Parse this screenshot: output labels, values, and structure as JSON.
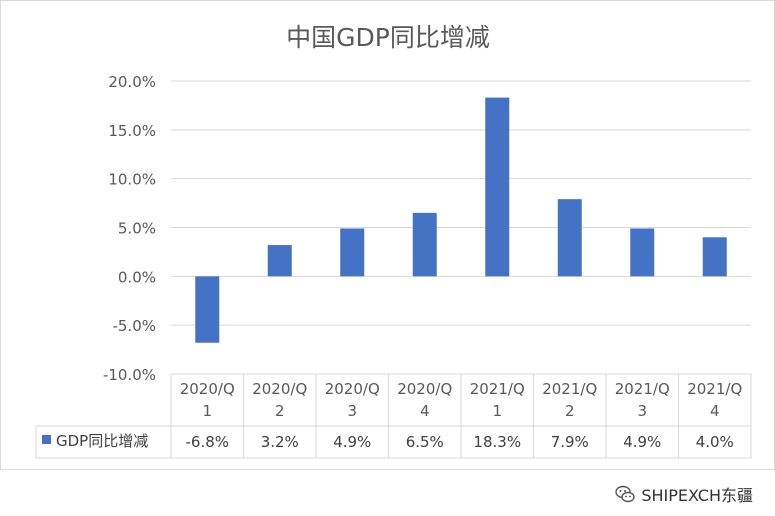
{
  "chart_data": {
    "type": "bar",
    "title": "中国GDP同比增减",
    "categories": [
      [
        "2020/Q",
        "1"
      ],
      [
        "2020/Q",
        "2"
      ],
      [
        "2020/Q",
        "3"
      ],
      [
        "2020/Q",
        "4"
      ],
      [
        "2021/Q",
        "1"
      ],
      [
        "2021/Q",
        "2"
      ],
      [
        "2021/Q",
        "3"
      ],
      [
        "2021/Q",
        "4"
      ]
    ],
    "series": [
      {
        "name": "GDP同比增减",
        "values": [
          -6.8,
          3.2,
          4.9,
          6.5,
          18.3,
          7.9,
          4.9,
          4.0
        ],
        "labels": [
          "-6.8%",
          "3.2%",
          "4.9%",
          "6.5%",
          "18.3%",
          "7.9%",
          "4.9%",
          "4.0%"
        ],
        "color": "#4472c4"
      }
    ],
    "ylim": [
      -10,
      20
    ],
    "yticks": [
      20,
      15,
      10,
      5,
      0,
      -5,
      -10
    ],
    "ytick_labels": [
      "20.0%",
      "15.0%",
      "10.0%",
      "5.0%",
      "0.0%",
      "-5.0%",
      "-10.0%"
    ],
    "grid": true,
    "legend": "data-table"
  },
  "watermark": {
    "text": "SHIPEXCH东疆",
    "icon": "wechat-icon"
  }
}
